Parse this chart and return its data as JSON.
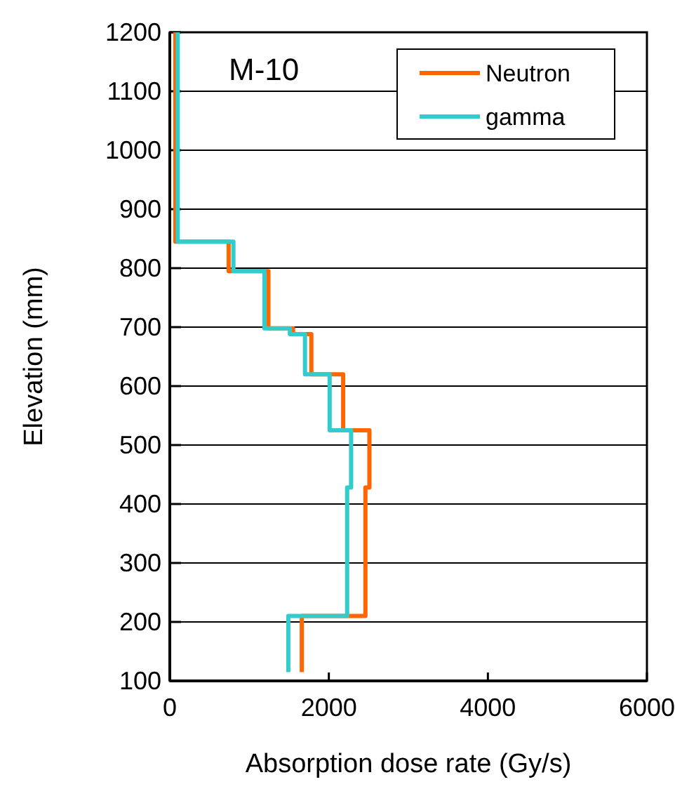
{
  "chart_data": {
    "type": "line",
    "title": "M-10",
    "xlabel": "Absorption dose rate (Gy/s)",
    "ylabel": "Elevation (mm)",
    "xlim": [
      0,
      6000
    ],
    "xticks": [
      0,
      2000,
      4000,
      6000
    ],
    "ylim": [
      100,
      1200
    ],
    "yticks": [
      100,
      200,
      300,
      400,
      500,
      600,
      700,
      800,
      900,
      1000,
      1100,
      1200
    ],
    "grid": "y",
    "legend": "top right",
    "marker": "none",
    "line_style": "solid",
    "series": [
      {
        "name": "Neutron",
        "color": "#ff6600",
        "x": [
          70,
          70,
          740,
          740,
          1240,
          1240,
          1550,
          1550,
          1780,
          1780,
          2180,
          2180,
          2510,
          2510,
          2460,
          2460,
          1660,
          1660
        ],
        "values": [
          1200,
          845,
          845,
          795,
          795,
          698,
          698,
          688,
          688,
          620,
          620,
          525,
          525,
          428,
          428,
          210,
          210,
          115
        ]
      },
      {
        "name": "gamma",
        "color": "#33cccc",
        "x": [
          100,
          100,
          800,
          800,
          1190,
          1190,
          1510,
          1510,
          1700,
          1700,
          2010,
          2010,
          2280,
          2280,
          2230,
          2230,
          1490,
          1490
        ],
        "values": [
          1200,
          845,
          845,
          795,
          795,
          698,
          698,
          688,
          688,
          620,
          620,
          525,
          525,
          428,
          428,
          210,
          210,
          115
        ]
      }
    ]
  }
}
